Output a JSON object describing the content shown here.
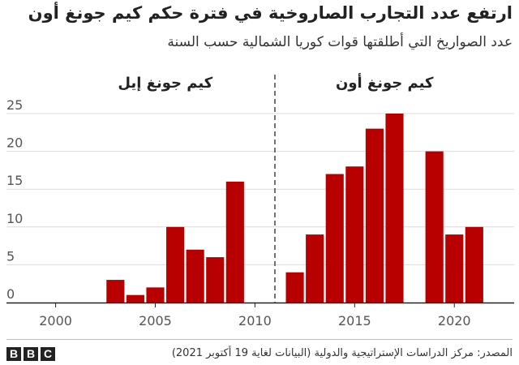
{
  "header": {
    "title": "ارتفع عدد التجارب الصاروخية في فترة حكم كيم جونغ أون",
    "subtitle": "عدد الصواريخ التي أطلقتها قوات كوريا الشمالية حسب السنة"
  },
  "footer": {
    "logo_letters": [
      "B",
      "B",
      "C"
    ],
    "source": "المصدر: مركز الدراسات الإستراتيجية والدولية (البيانات لغاية 19 أكتوبر 2021)"
  },
  "colors": {
    "bar": "#b80000",
    "grid": "#dcdcdc",
    "axis": "#222222",
    "divider": "#444444",
    "tick_text": "#555555"
  },
  "chart_data": {
    "type": "bar",
    "x": [
      2003,
      2004,
      2005,
      2006,
      2007,
      2008,
      2009,
      2012,
      2013,
      2014,
      2015,
      2016,
      2017,
      2019,
      2020,
      2021
    ],
    "values": [
      3,
      1,
      2,
      10,
      7,
      6,
      16,
      4,
      9,
      17,
      18,
      23,
      25,
      20,
      9,
      10
    ],
    "xlim": [
      1999,
      2023
    ],
    "xticks": [
      2000,
      2005,
      2010,
      2015,
      2020
    ],
    "ylim": [
      0,
      25
    ],
    "yticks": [
      0,
      5,
      10,
      15,
      20,
      25
    ],
    "grid": true,
    "divider_at": 2011,
    "annotations": [
      {
        "text": "كيم جونغ إيل",
        "x_center": 2005.5
      },
      {
        "text": "كيم جونغ أون",
        "x_center": 2016.5
      }
    ]
  }
}
